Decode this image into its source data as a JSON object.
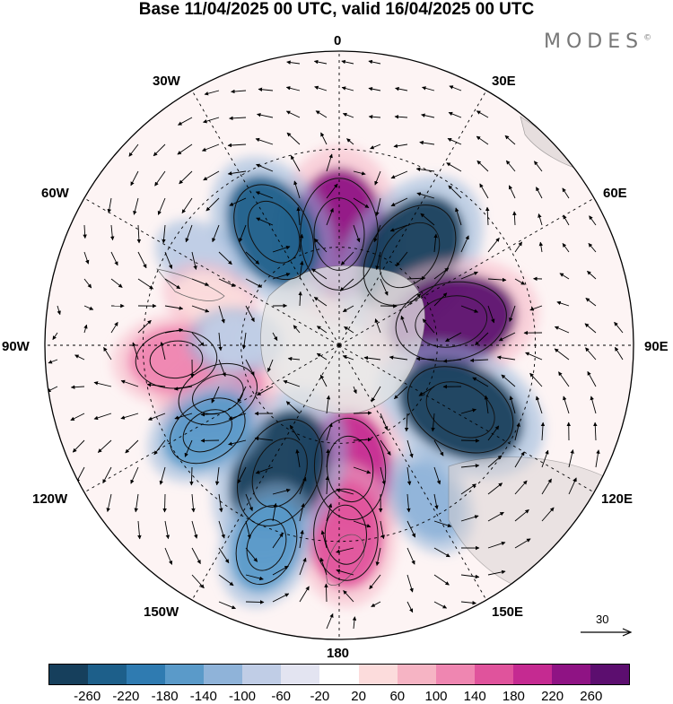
{
  "title": "Base 11/04/2025 00 UTC, valid 16/04/2025 00 UTC",
  "brand": "MODES",
  "brand_mark": "©",
  "longitude_labels": {
    "top": "0",
    "lon30e": "30E",
    "lon60e": "60E",
    "lon90e": "90E",
    "lon120e": "120E",
    "lon150e": "150E",
    "bottom": "180",
    "lon150w": "150W",
    "lon120w": "120W",
    "lon90w": "90W",
    "lon60w": "60W",
    "lon30w": "30W"
  },
  "reference_vector_label": "30",
  "colorbar": {
    "colors": [
      "#163f5c",
      "#1d5f8a",
      "#2f7bb1",
      "#5a9ac9",
      "#8fb3d9",
      "#c0cde6",
      "#e3e4f1",
      "#ffffff",
      "#fcdcdc",
      "#f6b4c4",
      "#ef86b1",
      "#e0539c",
      "#c52a91",
      "#8f1384",
      "#5c0e6f"
    ],
    "tick_labels": [
      "-260",
      "-220",
      "-180",
      "-140",
      "-100",
      "-60",
      "-20",
      "20",
      "60",
      "100",
      "140",
      "180",
      "220",
      "260"
    ]
  },
  "anomaly_centers": [
    {
      "lon": 0,
      "lat": -56,
      "value": 260,
      "color": "#8f1384"
    },
    {
      "lon": 38,
      "lat": -55,
      "value": -260,
      "color": "#163f5c"
    },
    {
      "lon": 78,
      "lat": -55,
      "value": 260,
      "color": "#5c0e6f"
    },
    {
      "lon": 118,
      "lat": -48,
      "value": -260,
      "color": "#163f5c"
    },
    {
      "lon": 175,
      "lat": -52,
      "value": 220,
      "color": "#c52a91"
    },
    {
      "lon": 178,
      "lat": -32,
      "value": 180,
      "color": "#e0539c"
    },
    {
      "lon": 150,
      "lat": -35,
      "value": -100,
      "color": "#8fb3d9"
    },
    {
      "lon": -155,
      "lat": -47,
      "value": -260,
      "color": "#163f5c"
    },
    {
      "lon": -160,
      "lat": -25,
      "value": -140,
      "color": "#5a9ac9"
    },
    {
      "lon": -112,
      "lat": -50,
      "value": 140,
      "color": "#ef86b1"
    },
    {
      "lon": -95,
      "lat": -40,
      "value": 140,
      "color": "#ef86b1"
    },
    {
      "lon": -123,
      "lat": -42,
      "value": -140,
      "color": "#5a9ac9"
    },
    {
      "lon": -30,
      "lat": -50,
      "value": -220,
      "color": "#1d5f8a"
    },
    {
      "lon": -58,
      "lat": -40,
      "value": -60,
      "color": "#c0cde6"
    },
    {
      "lon": -70,
      "lat": -48,
      "value": 60,
      "color": "#fcdcdc"
    },
    {
      "lon": -88,
      "lat": -58,
      "value": -60,
      "color": "#c0cde6"
    }
  ]
}
